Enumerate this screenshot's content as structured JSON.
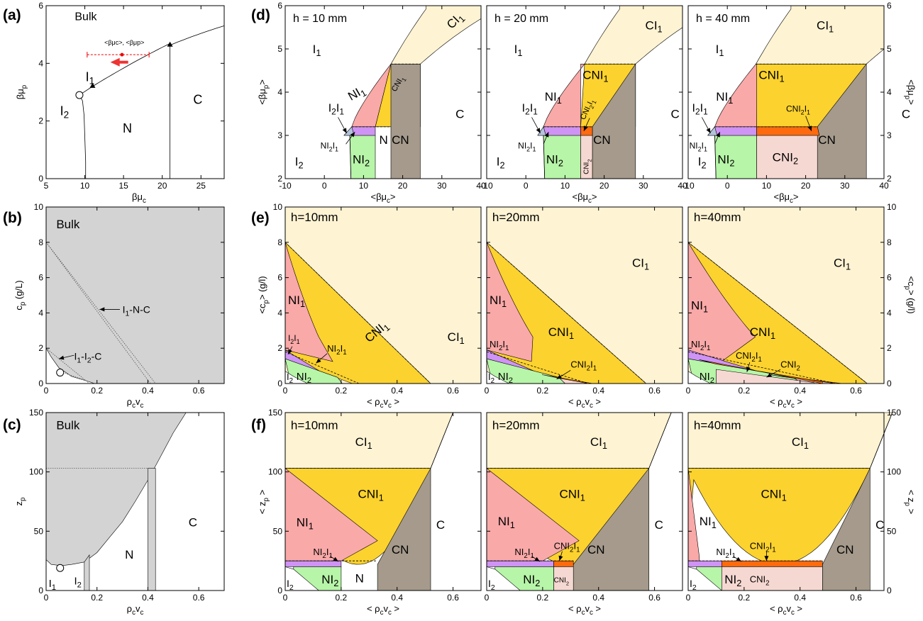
{
  "colors": {
    "CI1": "#fef3d3",
    "CNI1": "#fcd22e",
    "NI1": "#f9a9a8",
    "NI2": "#b7f5a8",
    "NI2I1": "#cf93f5",
    "CNI2I1": "#ff6a0e",
    "CNI2": "#f6d8d2",
    "CN": "#a59a8b",
    "I2I1": "#b4c3dc",
    "bulk_gray": "#d3d3d3"
  },
  "panel_labels": [
    "(a)",
    "(b)",
    "(c)",
    "(d)",
    "(e)",
    "(f)"
  ],
  "chart_data": [
    {
      "id": "a",
      "type": "line",
      "title": "Bulk",
      "xlabel": "βμc",
      "ylabel": "βμp",
      "xlim": [
        5,
        28
      ],
      "ylim": [
        0,
        6
      ],
      "xticks": [
        5,
        10,
        15,
        20,
        25
      ],
      "yticks": [
        0,
        2,
        4,
        6
      ],
      "phase_labels": [
        "I1",
        "I2",
        "N",
        "C"
      ],
      "annotation": "<βμc>, <βμp>"
    },
    {
      "id": "b",
      "type": "area",
      "title": "Bulk",
      "xlabel": "ρcvc",
      "ylabel": "cp (g/L)",
      "xlim": [
        0,
        0.7
      ],
      "ylim": [
        0,
        10
      ],
      "xticks": [
        0,
        0.2,
        0.4,
        0.6
      ],
      "yticks": [
        0,
        2,
        4,
        6,
        8,
        10
      ],
      "annotations": [
        "I1-N-C",
        "I1-I2-C"
      ]
    },
    {
      "id": "c",
      "type": "area",
      "title": "Bulk",
      "xlabel": "ρcvc",
      "ylabel": "zp",
      "xlim": [
        0,
        0.7
      ],
      "ylim": [
        0,
        150
      ],
      "xticks": [
        0,
        0.2,
        0.4,
        0.6
      ],
      "yticks": [
        0,
        50,
        100,
        150
      ],
      "phase_labels": [
        "I1",
        "I2",
        "N",
        "C"
      ]
    },
    {
      "id": "d",
      "type": "area",
      "xlabel": "<βμc>",
      "ylabel": "<βμp>",
      "xlim": [
        -10,
        40
      ],
      "ylim": [
        2,
        6
      ],
      "xticks": [
        -10,
        0,
        10,
        20,
        30,
        40
      ],
      "yticks": [
        2,
        3,
        4,
        5,
        6
      ],
      "subpanels": [
        "h = 10 mm",
        "h = 20 mm",
        "h = 40 mm"
      ],
      "phase_labels": [
        "CI1",
        "CNI1",
        "NI1",
        "NI2",
        "NI2I1",
        "CNI2I1",
        "CNI2",
        "CN",
        "I2I1",
        "I1",
        "I2",
        "N",
        "C"
      ]
    },
    {
      "id": "e",
      "type": "area",
      "xlabel": "< ρcvc >",
      "ylabel": "<cp> (g/l)",
      "xlim": [
        0,
        0.7
      ],
      "ylim": [
        0,
        10
      ],
      "xticks": [
        0,
        0.2,
        0.4,
        0.6
      ],
      "yticks": [
        0,
        2,
        4,
        6,
        8,
        10
      ],
      "subpanels": [
        "h=10mm",
        "h=20mm",
        "h=40mm"
      ],
      "phase_labels": [
        "CI1",
        "CNI1",
        "NI1",
        "NI2",
        "NI2I1",
        "CNI2I1",
        "CNI2",
        "I2I1",
        "I2"
      ]
    },
    {
      "id": "f",
      "type": "area",
      "xlabel": "< ρcvc >",
      "ylabel": "< zp >",
      "xlim": [
        0,
        0.7
      ],
      "ylim": [
        0,
        150
      ],
      "xticks": [
        0,
        0.2,
        0.4,
        0.6
      ],
      "yticks": [
        0,
        50,
        100,
        150
      ],
      "subpanels": [
        "h=10mm",
        "h=20mm",
        "h=40mm"
      ],
      "phase_labels": [
        "CI1",
        "CNI1",
        "NI1",
        "NI2",
        "NI2I1",
        "CNI2I1",
        "CNI2",
        "CN",
        "I2",
        "N",
        "C"
      ]
    }
  ]
}
